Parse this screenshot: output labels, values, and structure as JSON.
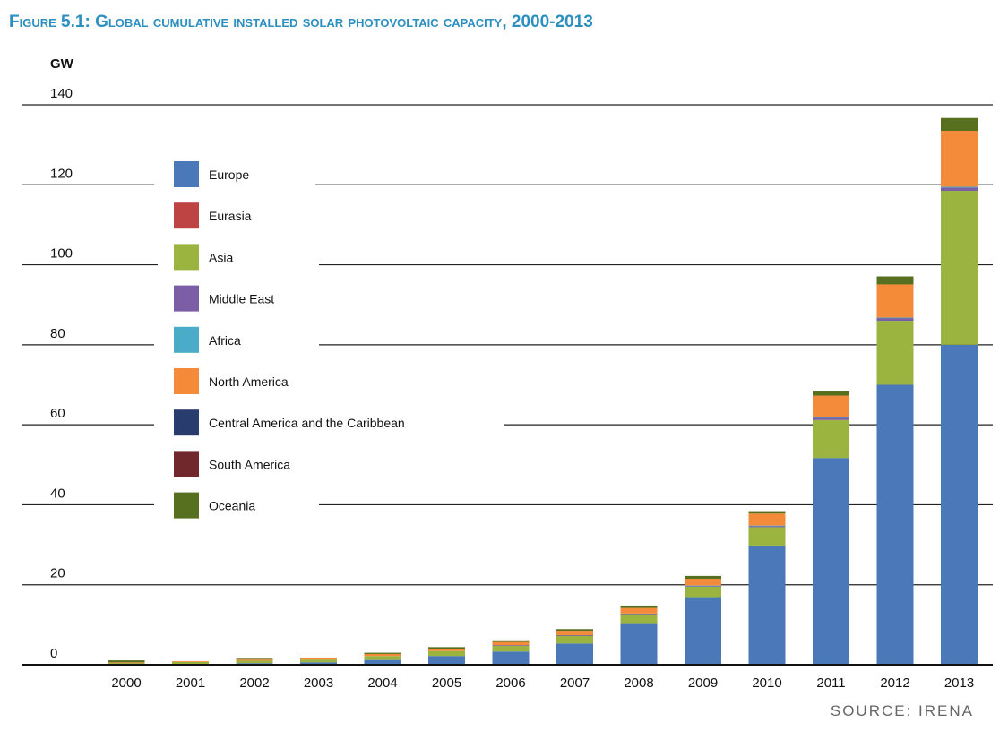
{
  "chart_data": {
    "type": "bar",
    "stacked": true,
    "title": "Figure 5.1: Global cumulative installed solar photovoltaic capacity, 2000-2013",
    "ylabel": "GW",
    "xlabel": "",
    "ylim": [
      0,
      140
    ],
    "yticks": [
      0,
      20,
      40,
      60,
      80,
      100,
      120,
      140
    ],
    "grid": true,
    "legend_position": "top-left",
    "categories": [
      "2000",
      "2001",
      "2002",
      "2003",
      "2004",
      "2005",
      "2006",
      "2007",
      "2008",
      "2009",
      "2010",
      "2011",
      "2012",
      "2013"
    ],
    "series": [
      {
        "name": "Europe",
        "color": "#4a78b8",
        "values": [
          0.1,
          0.2,
          0.4,
          0.6,
          1.2,
          2.2,
          3.3,
          5.3,
          10.4,
          16.9,
          29.8,
          51.7,
          70.0,
          80.0
        ]
      },
      {
        "name": "Eurasia",
        "color": "#be4443",
        "values": [
          0,
          0,
          0,
          0,
          0,
          0,
          0,
          0,
          0,
          0,
          0,
          0,
          0,
          0
        ]
      },
      {
        "name": "Asia",
        "color": "#9bb440",
        "values": [
          0.4,
          0.5,
          0.6,
          0.7,
          1.0,
          1.2,
          1.5,
          2.0,
          2.3,
          2.6,
          4.6,
          9.5,
          16.0,
          38.5
        ]
      },
      {
        "name": "Middle East",
        "color": "#7b5ea6",
        "values": [
          0,
          0,
          0,
          0,
          0,
          0,
          0.1,
          0.1,
          0.1,
          0.2,
          0.3,
          0.6,
          0.7,
          0.8
        ]
      },
      {
        "name": "Africa",
        "color": "#4aacc8",
        "values": [
          0,
          0,
          0,
          0,
          0,
          0,
          0,
          0,
          0,
          0.1,
          0.1,
          0.1,
          0.1,
          0.2
        ]
      },
      {
        "name": "North America",
        "color": "#f38b3a",
        "values": [
          0.1,
          0.2,
          0.3,
          0.3,
          0.5,
          0.6,
          0.8,
          1.1,
          1.4,
          1.7,
          3.0,
          5.4,
          8.3,
          14.0
        ]
      },
      {
        "name": "Central America and the Caribbean",
        "color": "#283d6e",
        "values": [
          0,
          0,
          0,
          0,
          0,
          0,
          0,
          0,
          0,
          0,
          0,
          0,
          0,
          0
        ]
      },
      {
        "name": "South America",
        "color": "#70282c",
        "values": [
          0,
          0,
          0,
          0,
          0,
          0,
          0,
          0,
          0,
          0,
          0,
          0,
          0,
          0
        ]
      },
      {
        "name": "Oceania",
        "color": "#56701f",
        "values": [
          0.5,
          0,
          0.2,
          0.2,
          0.3,
          0.4,
          0.4,
          0.4,
          0.6,
          0.7,
          0.6,
          1.1,
          2.0,
          3.2
        ]
      }
    ]
  },
  "source": "SOURCE: IRENA"
}
